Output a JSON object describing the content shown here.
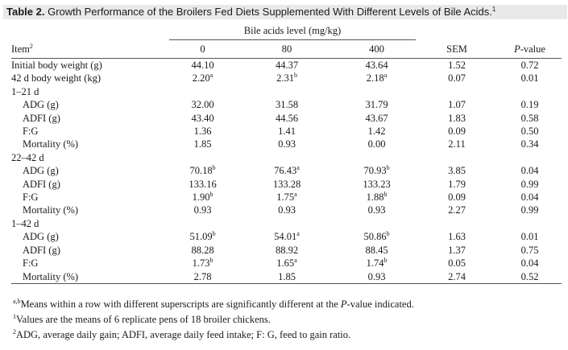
{
  "caption": {
    "label": "Table 2.",
    "text": "Growth Performance of the Broilers Fed Diets Supplemented With Different Levels of Bile Acids.",
    "sup": "1"
  },
  "header": {
    "group_label": "Bile acids level (mg/kg)",
    "item": "Item",
    "item_sup": "2",
    "levels": [
      "0",
      "80",
      "400"
    ],
    "sem": "SEM",
    "p_prefix": "P",
    "p_suffix": "-value"
  },
  "rows": [
    {
      "label": "Initial body weight (g)",
      "indent": false,
      "values": [
        [
          "44.10",
          ""
        ],
        [
          "44.37",
          ""
        ],
        [
          "43.64",
          ""
        ]
      ],
      "sem": "1.52",
      "p": "0.72"
    },
    {
      "label": "42 d body weight (kg)",
      "indent": false,
      "values": [
        [
          "2.20",
          "a"
        ],
        [
          "2.31",
          "b"
        ],
        [
          "2.18",
          "a"
        ]
      ],
      "sem": "0.07",
      "p": "0.01"
    },
    {
      "label": "1–21 d",
      "indent": false,
      "section": true
    },
    {
      "label": "ADG (g)",
      "indent": true,
      "values": [
        [
          "32.00",
          ""
        ],
        [
          "31.58",
          ""
        ],
        [
          "31.79",
          ""
        ]
      ],
      "sem": "1.07",
      "p": "0.19"
    },
    {
      "label": "ADFI (g)",
      "indent": true,
      "values": [
        [
          "43.40",
          ""
        ],
        [
          "44.56",
          ""
        ],
        [
          "43.67",
          ""
        ]
      ],
      "sem": "1.83",
      "p": "0.58"
    },
    {
      "label": "F:G",
      "indent": true,
      "values": [
        [
          "1.36",
          ""
        ],
        [
          "1.41",
          ""
        ],
        [
          "1.42",
          ""
        ]
      ],
      "sem": "0.09",
      "p": "0.50"
    },
    {
      "label": "Mortality (%)",
      "indent": true,
      "values": [
        [
          "1.85",
          ""
        ],
        [
          "0.93",
          ""
        ],
        [
          "0.00",
          ""
        ]
      ],
      "sem": "2.11",
      "p": "0.34"
    },
    {
      "label": "22–42 d",
      "indent": false,
      "section": true
    },
    {
      "label": "ADG (g)",
      "indent": true,
      "values": [
        [
          "70.18",
          "b"
        ],
        [
          "76.43",
          "a"
        ],
        [
          "70.93",
          "b"
        ]
      ],
      "sem": "3.85",
      "p": "0.04"
    },
    {
      "label": "ADFI (g)",
      "indent": true,
      "values": [
        [
          "133.16",
          ""
        ],
        [
          "133.28",
          ""
        ],
        [
          "133.23",
          ""
        ]
      ],
      "sem": "1.79",
      "p": "0.99"
    },
    {
      "label": "F:G",
      "indent": true,
      "values": [
        [
          "1.90",
          "b"
        ],
        [
          "1.75",
          "a"
        ],
        [
          "1.88",
          "b"
        ]
      ],
      "sem": "0.09",
      "p": "0.04"
    },
    {
      "label": "Mortality (%)",
      "indent": true,
      "values": [
        [
          "0.93",
          ""
        ],
        [
          "0.93",
          ""
        ],
        [
          "0.93",
          ""
        ]
      ],
      "sem": "2.27",
      "p": "0.99"
    },
    {
      "label": "1–42 d",
      "indent": false,
      "section": true
    },
    {
      "label": "ADG (g)",
      "indent": true,
      "values": [
        [
          "51.09",
          "b"
        ],
        [
          "54.01",
          "a"
        ],
        [
          "50.86",
          "b"
        ]
      ],
      "sem": "1.63",
      "p": "0.01"
    },
    {
      "label": "ADFI (g)",
      "indent": true,
      "values": [
        [
          "88.28",
          ""
        ],
        [
          "88.92",
          ""
        ],
        [
          "88.45",
          ""
        ]
      ],
      "sem": "1.37",
      "p": "0.75"
    },
    {
      "label": "F:G",
      "indent": true,
      "values": [
        [
          "1.73",
          "b"
        ],
        [
          "1.65",
          "a"
        ],
        [
          "1.74",
          "b"
        ]
      ],
      "sem": "0.05",
      "p": "0.04"
    },
    {
      "label": "Mortality (%)",
      "indent": true,
      "values": [
        [
          "2.78",
          ""
        ],
        [
          "1.85",
          ""
        ],
        [
          "0.93",
          ""
        ]
      ],
      "sem": "2.74",
      "p": "0.52"
    }
  ],
  "footnotes": {
    "ab": {
      "sup": "a,b",
      "text_before": "Means within a row with different superscripts are significantly different at the ",
      "italic": "P",
      "text_after": "-value indicated."
    },
    "one": {
      "sup": "1",
      "text": "Values are the means of 6 replicate pens of 18 broiler chickens."
    },
    "two": {
      "sup": "2",
      "text": "ADG, average daily gain; ADFI, average daily feed intake; F: G, feed to gain ratio."
    }
  }
}
